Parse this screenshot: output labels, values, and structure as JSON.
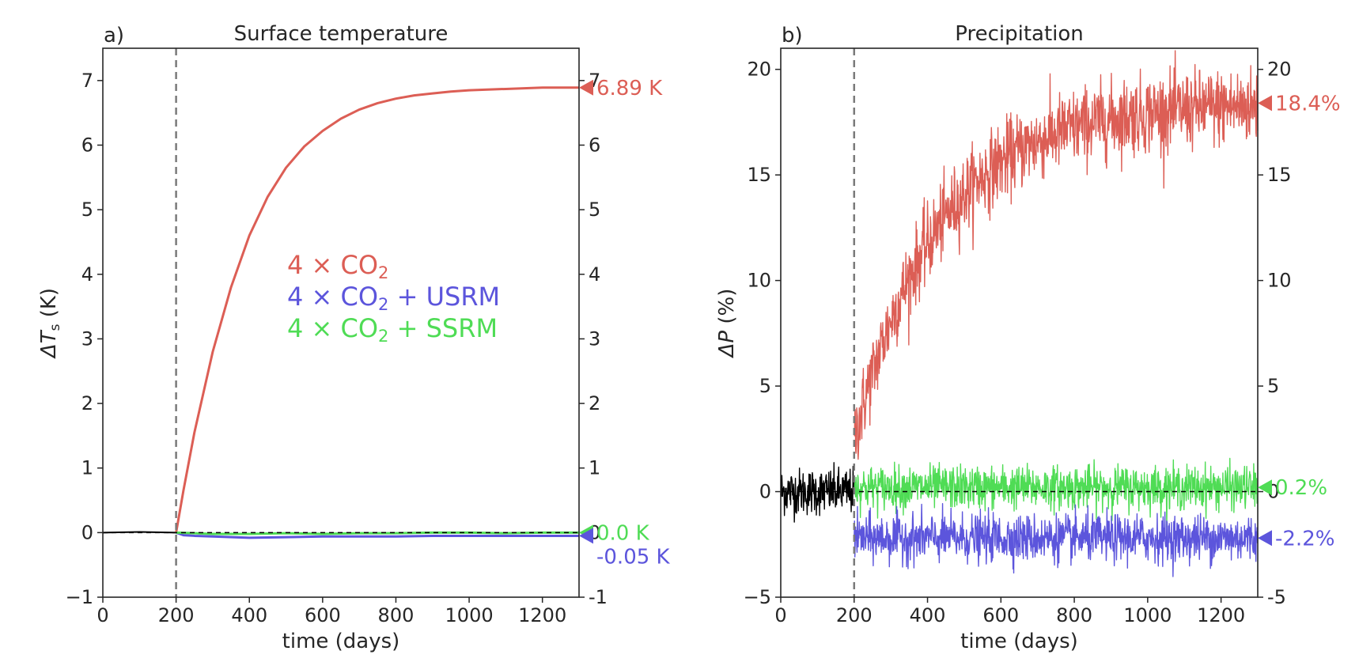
{
  "colors": {
    "co2": "#dc5e55",
    "usrm": "#5c55dc",
    "ssrm": "#4fdc55",
    "control": "#000000",
    "axis": "#262626",
    "vline": "#7a7a7a"
  },
  "legend": {
    "co2": {
      "prefix": "4 × CO",
      "sub": "2",
      "suffix": ""
    },
    "usrm": {
      "prefix": "4 × CO",
      "sub": "2",
      "suffix": " + USRM"
    },
    "ssrm": {
      "prefix": "4 × CO",
      "sub": "2",
      "suffix": " + SSRM"
    }
  },
  "chart_data": [
    {
      "type": "line",
      "panel_label": "a)",
      "title": "Surface temperature",
      "xlabel": "time (days)",
      "ylabel_main": "ΔT",
      "ylabel_sub": "s",
      "ylabel_unit": " (K)",
      "xlim": [
        0,
        1300
      ],
      "ylim": [
        -1,
        7.5
      ],
      "xticks": [
        0,
        200,
        400,
        600,
        800,
        1000,
        1200
      ],
      "yticks": [
        -1,
        0,
        1,
        2,
        3,
        4,
        5,
        6,
        7
      ],
      "ytick_labels": [
        "−1",
        "0",
        "1",
        "2",
        "3",
        "4",
        "5",
        "6",
        "7"
      ],
      "right_ytick_labels": [
        "-1",
        "0",
        "1",
        "2",
        "3",
        "4",
        "5",
        "6",
        "7"
      ],
      "forcing_day": 200,
      "series": [
        {
          "key": "control",
          "x": [
            0,
            100,
            200
          ],
          "y": [
            0.0,
            0.01,
            0.0
          ]
        },
        {
          "key": "co2",
          "x": [
            200,
            220,
            250,
            300,
            350,
            400,
            450,
            500,
            550,
            600,
            650,
            700,
            750,
            800,
            850,
            900,
            950,
            1000,
            1050,
            1100,
            1150,
            1200,
            1250,
            1300
          ],
          "y": [
            0.0,
            0.65,
            1.55,
            2.8,
            3.8,
            4.6,
            5.2,
            5.65,
            5.98,
            6.22,
            6.41,
            6.55,
            6.65,
            6.72,
            6.77,
            6.8,
            6.83,
            6.85,
            6.86,
            6.87,
            6.88,
            6.89,
            6.89,
            6.89
          ]
        },
        {
          "key": "usrm",
          "x": [
            200,
            220,
            250,
            300,
            400,
            500,
            600,
            700,
            800,
            900,
            1000,
            1100,
            1200,
            1300
          ],
          "y": [
            0.0,
            -0.04,
            -0.05,
            -0.06,
            -0.08,
            -0.07,
            -0.06,
            -0.06,
            -0.06,
            -0.05,
            -0.05,
            -0.05,
            -0.05,
            -0.05
          ]
        },
        {
          "key": "ssrm",
          "x": [
            200,
            250,
            300,
            400,
            500,
            600,
            700,
            800,
            900,
            1000,
            1100,
            1200,
            1300
          ],
          "y": [
            0.0,
            -0.01,
            -0.02,
            -0.02,
            -0.01,
            -0.02,
            -0.01,
            -0.01,
            0.0,
            0.0,
            -0.01,
            0.0,
            0.0
          ]
        }
      ],
      "end_markers": [
        {
          "key": "co2",
          "value": 6.89,
          "label": "6.89 K"
        },
        {
          "key": "ssrm",
          "value": 0.0,
          "label": " 0.0 K"
        },
        {
          "key": "usrm",
          "value": -0.05,
          "label": "-0.05 K"
        }
      ]
    },
    {
      "type": "line",
      "panel_label": "b)",
      "title": "Precipitation",
      "xlabel": "time (days)",
      "ylabel_main": "ΔP",
      "ylabel_sub": "",
      "ylabel_unit": " (%)",
      "xlim": [
        0,
        1300
      ],
      "ylim": [
        -5,
        21
      ],
      "xticks": [
        0,
        200,
        400,
        600,
        800,
        1000,
        1200
      ],
      "yticks": [
        -5,
        0,
        5,
        10,
        15,
        20
      ],
      "ytick_labels": [
        "−5",
        "0",
        "5",
        "10",
        "15",
        "20"
      ],
      "right_ytick_labels": [
        "-5",
        "0",
        "5",
        "10",
        "15",
        "20"
      ],
      "forcing_day": 200,
      "noisy_series": [
        {
          "key": "control",
          "start": 0,
          "end": 200,
          "tau": 0,
          "eq": 0.0,
          "amp": 0.55
        },
        {
          "key": "co2",
          "start": 200,
          "end": 1300,
          "tau": 230,
          "eq": 18.4,
          "amp": 0.9,
          "start_value": 2.5
        },
        {
          "key": "ssrm",
          "start": 200,
          "end": 1300,
          "tau": 0,
          "eq": 0.2,
          "amp": 0.5
        },
        {
          "key": "usrm",
          "start": 200,
          "end": 1300,
          "tau": 0,
          "eq": -2.2,
          "amp": 0.55
        }
      ],
      "end_markers": [
        {
          "key": "co2",
          "value": 18.4,
          "label": "18.4%"
        },
        {
          "key": "ssrm",
          "value": 0.2,
          "label": "0.2%"
        },
        {
          "key": "usrm",
          "value": -2.2,
          "label": "-2.2%"
        }
      ]
    }
  ]
}
